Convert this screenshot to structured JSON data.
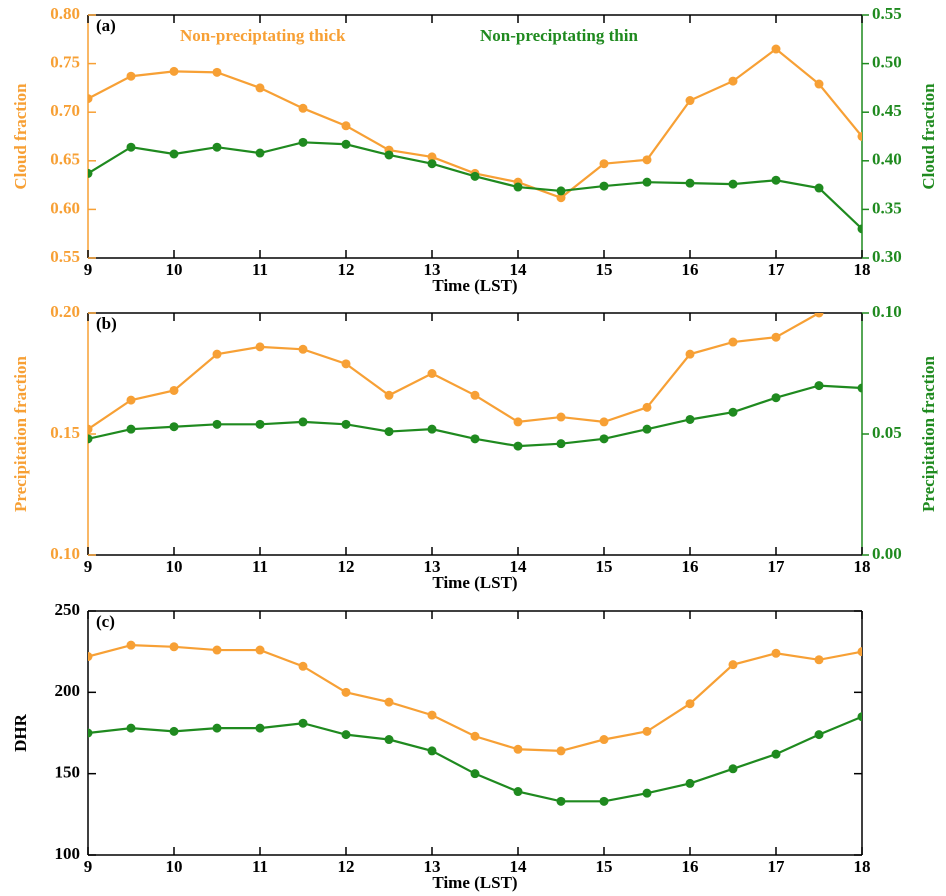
{
  "chart_data": [
    {
      "type": "line",
      "label": "(a)",
      "xlabel": "Time (LST)",
      "ylabel": "Cloud fraction",
      "y2label": "Cloud fraction",
      "x": [
        9,
        9.5,
        10,
        10.5,
        11,
        11.5,
        12,
        12.5,
        13,
        13.5,
        14,
        14.5,
        15,
        15.5,
        16,
        16.5,
        17,
        17.5,
        18
      ],
      "xlim": [
        9,
        18
      ],
      "xticks": [
        9,
        10,
        11,
        12,
        13,
        14,
        15,
        16,
        17,
        18
      ],
      "ylim": [
        0.55,
        0.8
      ],
      "yticks": [
        0.55,
        {
          "value": 0.6,
          "label": "0.60"
        },
        0.65,
        {
          "value": 0.7,
          "label": "0.70"
        },
        0.75,
        {
          "value": 0.8,
          "label": "0.80"
        }
      ],
      "y2lim": [
        0.3,
        0.55
      ],
      "y2ticks": [
        {
          "value": 0.3,
          "label": "0.30"
        },
        0.35,
        {
          "value": 0.4,
          "label": "0.40"
        },
        0.45,
        {
          "value": 0.5,
          "label": "0.50"
        },
        0.55
      ],
      "series": [
        {
          "name": "Non-preciptating thick",
          "color": "#f7a035",
          "values": [
            0.714,
            0.737,
            0.742,
            0.741,
            0.725,
            0.704,
            0.686,
            0.661,
            0.654,
            0.637,
            0.628,
            0.612,
            0.647,
            0.651,
            0.712,
            0.732,
            0.765,
            0.729,
            0.675
          ]
        },
        {
          "name": "Non-preciptating thin",
          "color": "#1f8a1f",
          "axis": "y2",
          "values": [
            0.387,
            0.414,
            0.407,
            0.414,
            0.408,
            0.419,
            0.417,
            0.406,
            0.397,
            0.384,
            0.373,
            0.369,
            0.374,
            0.378,
            0.377,
            0.376,
            0.38,
            0.372,
            0.33
          ]
        }
      ]
    },
    {
      "type": "line",
      "label": "(b)",
      "xlabel": "Time (LST)",
      "ylabel": "Precipitation fraction",
      "y2label": "Precipitation fraction",
      "x": [
        9,
        9.5,
        10,
        10.5,
        11,
        11.5,
        12,
        12.5,
        13,
        13.5,
        14,
        14.5,
        15,
        15.5,
        16,
        16.5,
        17,
        17.5,
        18
      ],
      "xlim": [
        9,
        18
      ],
      "xticks": [
        9,
        10,
        11,
        12,
        13,
        14,
        15,
        16,
        17,
        18
      ],
      "ylim": [
        0.1,
        0.2
      ],
      "yticks": [
        {
          "value": 0.1,
          "label": "0.10"
        },
        0.15,
        {
          "value": 0.2,
          "label": "0.20"
        }
      ],
      "y2lim": [
        0,
        0.1
      ],
      "y2ticks": [
        {
          "value": 0,
          "label": "0.00"
        },
        0.05,
        {
          "value": 0.1,
          "label": "0.10"
        }
      ],
      "series": [
        {
          "color": "#f7a035",
          "values": [
            0.152,
            0.164,
            0.168,
            0.183,
            0.186,
            0.185,
            0.179,
            0.166,
            0.175,
            0.166,
            0.155,
            0.157,
            0.155,
            0.161,
            0.183,
            0.188,
            0.19,
            0.2,
            0.205
          ]
        },
        {
          "color": "#1f8a1f",
          "axis": "y2",
          "values": [
            0.048,
            0.052,
            0.053,
            0.054,
            0.054,
            0.055,
            0.054,
            0.051,
            0.052,
            0.048,
            0.045,
            0.046,
            0.048,
            0.052,
            0.056,
            0.059,
            0.065,
            0.07,
            0.069
          ]
        }
      ]
    },
    {
      "type": "line",
      "label": "(c)",
      "xlabel": "Time (LST)",
      "ylabel": "DHR",
      "x": [
        9,
        9.5,
        10,
        10.5,
        11,
        11.5,
        12,
        12.5,
        13,
        13.5,
        14,
        14.5,
        15,
        15.5,
        16,
        16.5,
        17,
        17.5,
        18
      ],
      "xlim": [
        9,
        18
      ],
      "xticks": [
        9,
        10,
        11,
        12,
        13,
        14,
        15,
        16,
        17,
        18
      ],
      "ylim": [
        100,
        250
      ],
      "yticks": [
        100,
        150,
        200,
        250
      ],
      "series": [
        {
          "color": "#f7a035",
          "values": [
            222,
            229,
            228,
            226,
            226,
            216,
            200,
            194,
            186,
            173,
            165,
            164,
            171,
            176,
            193,
            217,
            224,
            220,
            225
          ]
        },
        {
          "color": "#1f8a1f",
          "values": [
            175,
            178,
            176,
            178,
            178,
            181,
            174,
            171,
            164,
            150,
            139,
            133,
            133,
            138,
            144,
            153,
            162,
            174,
            185
          ]
        }
      ]
    }
  ]
}
